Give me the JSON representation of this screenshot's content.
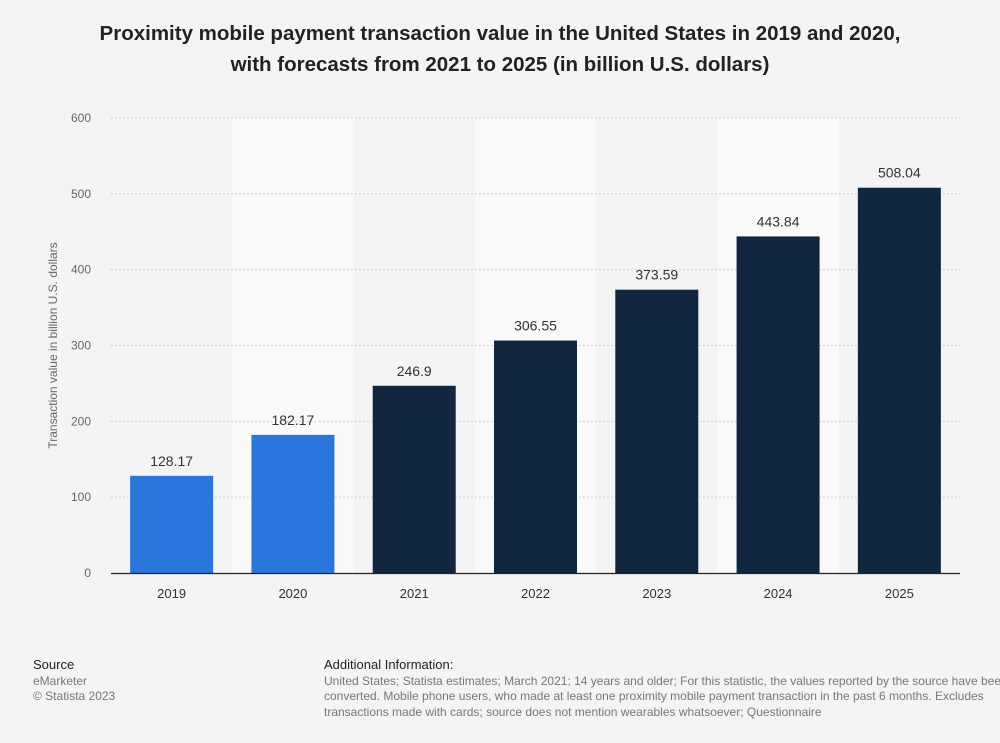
{
  "title": {
    "line1": "Proximity mobile payment transaction value in the United States in 2019 and 2020,",
    "line2": "with forecasts from 2021 to 2025 (in billion U.S. dollars)"
  },
  "colors": {
    "actual": "#2a76dd",
    "forecast": "#11263f",
    "band": "#fafafa",
    "grid": "#c4c4c4",
    "axis": "#222222"
  },
  "chart_data": {
    "type": "bar",
    "title": "Proximity mobile payment transaction value in the United States in 2019 and 2020, with forecasts from 2021 to 2025 (in billion U.S. dollars)",
    "xlabel": "",
    "ylabel": "Transaction value in billion U.S. dollars",
    "categories": [
      "2019",
      "2020",
      "2021",
      "2022",
      "2023",
      "2024",
      "2025"
    ],
    "values": [
      128.17,
      182.17,
      246.9,
      306.55,
      373.59,
      443.84,
      508.04
    ],
    "value_labels": [
      "128.17",
      "182.17",
      "246.9",
      "306.55",
      "373.59",
      "443.84",
      "508.04"
    ],
    "kinds": [
      "actual",
      "actual",
      "forecast",
      "forecast",
      "forecast",
      "forecast",
      "forecast"
    ],
    "ylim": [
      0,
      600
    ],
    "yticks": [
      0,
      100,
      200,
      300,
      400,
      500,
      600
    ],
    "grid": true
  },
  "footer": {
    "source_heading": "Source",
    "source_name": "eMarketer",
    "copyright": "© Statista 2023",
    "info_heading": "Additional Information:",
    "info_text": "United States; Statista estimates; March 2021; 14 years and older; For this statistic, the values reported by the source have been converted. Mobile phone users, who made at least one proximity mobile payment transaction in the past 6 months. Excludes transactions made with cards; source does not mention wearables whatsoever; Questionnaire"
  }
}
